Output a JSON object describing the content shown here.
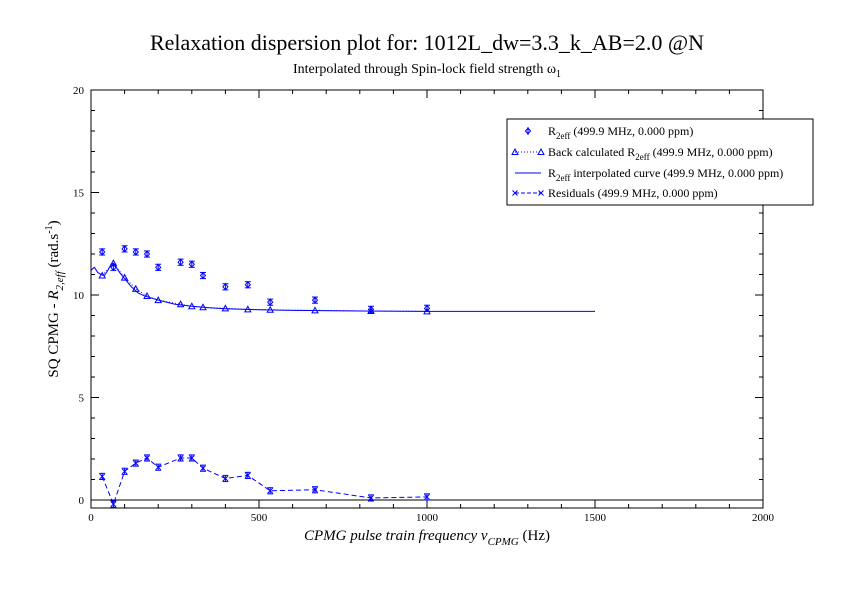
{
  "chart_data": {
    "type": "scatter",
    "title": "Relaxation dispersion plot for: 1012L_dw=3.3_k_AB=2.0 @N",
    "subtitle": "Interpolated through Spin-lock field strength ω",
    "subtitle_sub": "1",
    "xlabel": "CPMG pulse train frequency ν",
    "xlabel_sub": "CPMG",
    "xlabel_unit": " (Hz)",
    "ylabel_prefix": "SQ CPMG - ",
    "ylabel_r": "R",
    "ylabel_sub": "2,eff",
    "ylabel_unit": "  (rad.s",
    "ylabel_sup": "-1",
    "ylabel_close": ")",
    "xlim": [
      0,
      2000
    ],
    "ylim": [
      0,
      20
    ],
    "xticks": [
      0,
      500,
      1000,
      1500,
      2000
    ],
    "yticks": [
      0,
      5,
      10,
      15,
      20
    ],
    "grid": false,
    "legend_position": "top-right",
    "color": "#0000ff",
    "series": [
      {
        "name": "R2eff (499.9 MHz, 0.000 ppm)",
        "legend": {
          "main": "R",
          "sub": "2eff",
          "rest": " (499.9 MHz, 0.000 ppm)"
        },
        "style": "diamond-errorbar",
        "x": [
          33.3,
          66.7,
          100,
          133.3,
          166.7,
          200,
          266.7,
          300,
          333.3,
          400,
          466.7,
          533.3,
          666.7,
          833.3,
          1000
        ],
        "y": [
          12.1,
          11.35,
          12.25,
          12.1,
          12.0,
          11.35,
          11.6,
          11.5,
          10.95,
          10.4,
          10.5,
          9.65,
          9.75,
          9.3,
          9.35
        ],
        "err": [
          0.15,
          0.15,
          0.15,
          0.15,
          0.15,
          0.15,
          0.15,
          0.15,
          0.15,
          0.15,
          0.15,
          0.15,
          0.15,
          0.15,
          0.15
        ]
      },
      {
        "name": "Back calculated R2eff (499.9 MHz, 0.000 ppm)",
        "legend": {
          "main": "Back calculated R",
          "sub": "2eff",
          "rest": " (499.9 MHz, 0.000 ppm)"
        },
        "style": "triangle-dotted",
        "x": [
          33.3,
          66.7,
          100,
          133.3,
          166.7,
          200,
          266.7,
          300,
          333.3,
          400,
          466.7,
          533.3,
          666.7,
          833.3,
          1000
        ],
        "y": [
          10.95,
          11.55,
          10.85,
          10.3,
          9.95,
          9.75,
          9.55,
          9.45,
          9.4,
          9.35,
          9.3,
          9.28,
          9.25,
          9.22,
          9.2
        ]
      },
      {
        "name": "R2eff interpolated curve (499.9 MHz, 0.000 ppm)",
        "legend": {
          "main": "R",
          "sub": "2eff",
          "rest": " interpolated curve (499.9 MHz, 0.000 ppm)"
        },
        "style": "solid-line",
        "x": [
          0,
          10,
          20,
          30,
          40,
          50,
          60,
          66.7,
          75,
          85,
          100,
          120,
          140,
          160,
          180,
          200,
          250,
          300,
          350,
          400,
          500,
          600,
          800,
          1000,
          1200,
          1500
        ],
        "y": [
          11.2,
          11.35,
          11.1,
          11.0,
          10.95,
          11.2,
          11.5,
          11.55,
          11.35,
          11.1,
          10.8,
          10.4,
          10.1,
          9.95,
          9.85,
          9.75,
          9.55,
          9.45,
          9.38,
          9.33,
          9.28,
          9.25,
          9.22,
          9.2,
          9.2,
          9.2
        ]
      },
      {
        "name": "Residuals (499.9 MHz, 0.000 ppm)",
        "legend": {
          "main": "Residuals",
          "sub": "",
          "rest": " (499.9 MHz, 0.000 ppm)"
        },
        "style": "x-dashed-errorbar",
        "x": [
          33.3,
          66.7,
          100,
          133.3,
          166.7,
          200,
          266.7,
          300,
          333.3,
          400,
          466.7,
          533.3,
          666.7,
          833.3,
          1000
        ],
        "y": [
          1.15,
          -0.2,
          1.4,
          1.8,
          2.05,
          1.6,
          2.05,
          2.05,
          1.55,
          1.05,
          1.2,
          0.45,
          0.5,
          0.1,
          0.15
        ],
        "err": [
          0.15,
          0.15,
          0.15,
          0.15,
          0.15,
          0.15,
          0.15,
          0.15,
          0.15,
          0.15,
          0.15,
          0.15,
          0.15,
          0.15,
          0.15
        ]
      }
    ]
  }
}
